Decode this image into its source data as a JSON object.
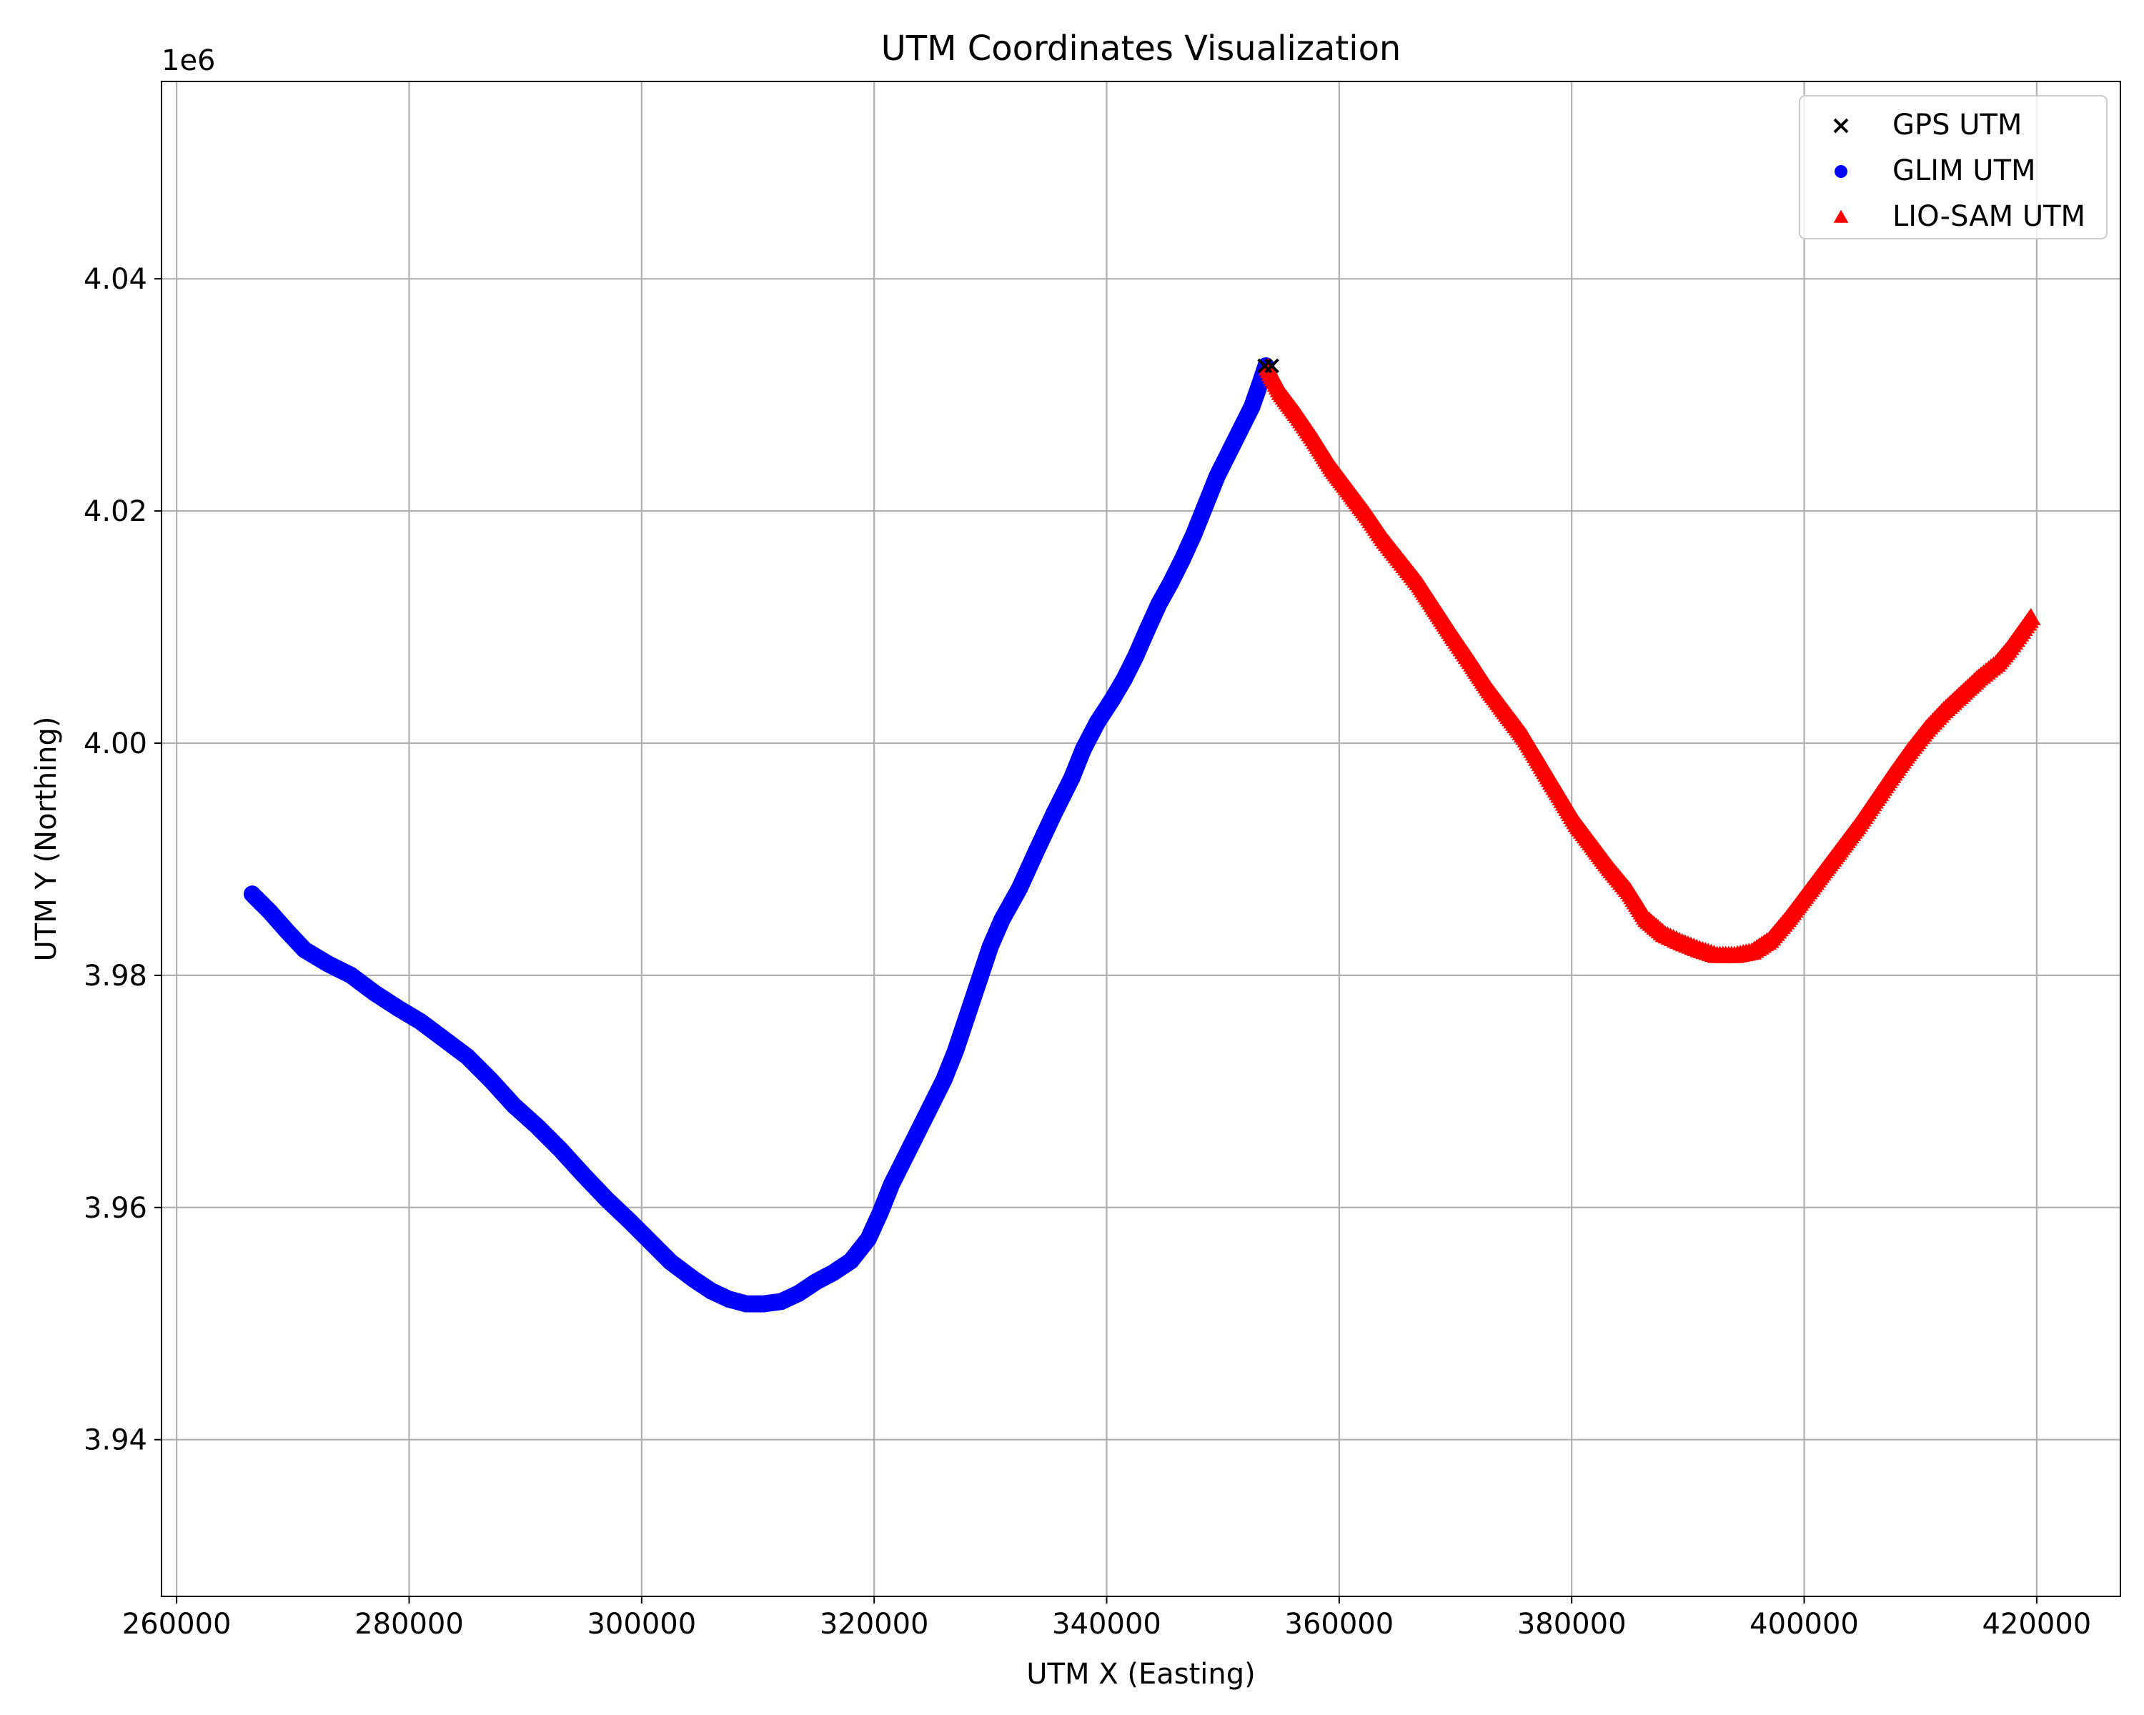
{
  "chart_data": {
    "type": "scatter",
    "title": "UTM Coordinates Visualization",
    "xlabel": "UTM X (Easting)",
    "ylabel": "UTM Y (Northing)",
    "y_offset_text": "1e6",
    "xlim": [
      258700,
      427200
    ],
    "ylim": [
      3926500,
      4057000
    ],
    "xticks": [
      260000,
      280000,
      300000,
      320000,
      340000,
      360000,
      380000,
      400000,
      420000
    ],
    "xtick_labels": [
      "260000",
      "280000",
      "300000",
      "320000",
      "340000",
      "360000",
      "380000",
      "400000",
      "420000"
    ],
    "yticks": [
      3940000,
      3960000,
      3980000,
      4000000,
      4020000,
      4040000
    ],
    "ytick_labels": [
      "3.94",
      "3.96",
      "3.98",
      "4.00",
      "4.02",
      "4.04"
    ],
    "grid": true,
    "legend_position": "top-right",
    "series": [
      {
        "name": "GPS UTM",
        "marker": "x",
        "color": "#000000",
        "points": [
          [
            353600,
            4032500
          ],
          [
            354200,
            4032500
          ]
        ]
      },
      {
        "name": "GLIM UTM",
        "marker": "circle",
        "color": "#0000ff",
        "points": [
          [
            266500,
            3987000
          ],
          [
            268000,
            3985500
          ],
          [
            269500,
            3983800
          ],
          [
            271000,
            3982200
          ],
          [
            273000,
            3981000
          ],
          [
            275000,
            3980000
          ],
          [
            277000,
            3978500
          ],
          [
            279000,
            3977200
          ],
          [
            281000,
            3976000
          ],
          [
            283000,
            3974500
          ],
          [
            285000,
            3973000
          ],
          [
            287000,
            3971000
          ],
          [
            289000,
            3968800
          ],
          [
            291000,
            3967000
          ],
          [
            293000,
            3965000
          ],
          [
            295000,
            3962800
          ],
          [
            297000,
            3960700
          ],
          [
            299000,
            3958800
          ],
          [
            301000,
            3956800
          ],
          [
            302500,
            3955300
          ],
          [
            304500,
            3953800
          ],
          [
            306000,
            3952800
          ],
          [
            307500,
            3952100
          ],
          [
            309000,
            3951700
          ],
          [
            310500,
            3951700
          ],
          [
            312000,
            3951900
          ],
          [
            313500,
            3952600
          ],
          [
            315000,
            3953600
          ],
          [
            316500,
            3954400
          ],
          [
            318000,
            3955400
          ],
          [
            319500,
            3957300
          ],
          [
            320500,
            3959500
          ],
          [
            321500,
            3962000
          ],
          [
            323000,
            3965000
          ],
          [
            324500,
            3968000
          ],
          [
            326000,
            3971000
          ],
          [
            327000,
            3973500
          ],
          [
            328000,
            3976500
          ],
          [
            329000,
            3979500
          ],
          [
            330000,
            3982500
          ],
          [
            331000,
            3984800
          ],
          [
            332500,
            3987500
          ],
          [
            334000,
            3990800
          ],
          [
            335500,
            3994000
          ],
          [
            337000,
            3997000
          ],
          [
            338000,
            3999500
          ],
          [
            339200,
            4001800
          ],
          [
            340500,
            4003800
          ],
          [
            341500,
            4005500
          ],
          [
            342500,
            4007500
          ],
          [
            343500,
            4009800
          ],
          [
            344500,
            4012000
          ],
          [
            345500,
            4013800
          ],
          [
            346500,
            4015800
          ],
          [
            347500,
            4018000
          ],
          [
            348500,
            4020500
          ],
          [
            349500,
            4023000
          ],
          [
            350500,
            4025000
          ],
          [
            351500,
            4027000
          ],
          [
            352500,
            4029000
          ],
          [
            353200,
            4031000
          ],
          [
            353700,
            4032500
          ]
        ]
      },
      {
        "name": "LIO-SAM UTM",
        "marker": "triangle",
        "color": "#ff0000",
        "points": [
          [
            353900,
            4032300
          ],
          [
            355000,
            4030200
          ],
          [
            356500,
            4028200
          ],
          [
            358000,
            4026000
          ],
          [
            359500,
            4023600
          ],
          [
            361000,
            4021600
          ],
          [
            362500,
            4019600
          ],
          [
            364000,
            4017400
          ],
          [
            365500,
            4015500
          ],
          [
            367000,
            4013600
          ],
          [
            368500,
            4011300
          ],
          [
            370000,
            4009000
          ],
          [
            371500,
            4006800
          ],
          [
            373000,
            4004500
          ],
          [
            374500,
            4002500
          ],
          [
            376000,
            4000500
          ],
          [
            377500,
            3998000
          ],
          [
            379000,
            3995500
          ],
          [
            380500,
            3993000
          ],
          [
            382000,
            3991000
          ],
          [
            383500,
            3989000
          ],
          [
            385000,
            3987200
          ],
          [
            386500,
            3984800
          ],
          [
            388000,
            3983500
          ],
          [
            389500,
            3982800
          ],
          [
            391000,
            3982200
          ],
          [
            392500,
            3981700
          ],
          [
            394000,
            3981700
          ],
          [
            395500,
            3982000
          ],
          [
            397000,
            3983000
          ],
          [
            398500,
            3984800
          ],
          [
            400000,
            3986800
          ],
          [
            401500,
            3988800
          ],
          [
            403000,
            3990800
          ],
          [
            404500,
            3992800
          ],
          [
            406000,
            3995000
          ],
          [
            407500,
            3997200
          ],
          [
            409000,
            3999300
          ],
          [
            410500,
            4001200
          ],
          [
            412000,
            4002800
          ],
          [
            413500,
            4004200
          ],
          [
            415000,
            4005600
          ],
          [
            416500,
            4006800
          ],
          [
            417500,
            4008000
          ],
          [
            418500,
            4009400
          ],
          [
            419500,
            4010800
          ]
        ]
      }
    ]
  }
}
